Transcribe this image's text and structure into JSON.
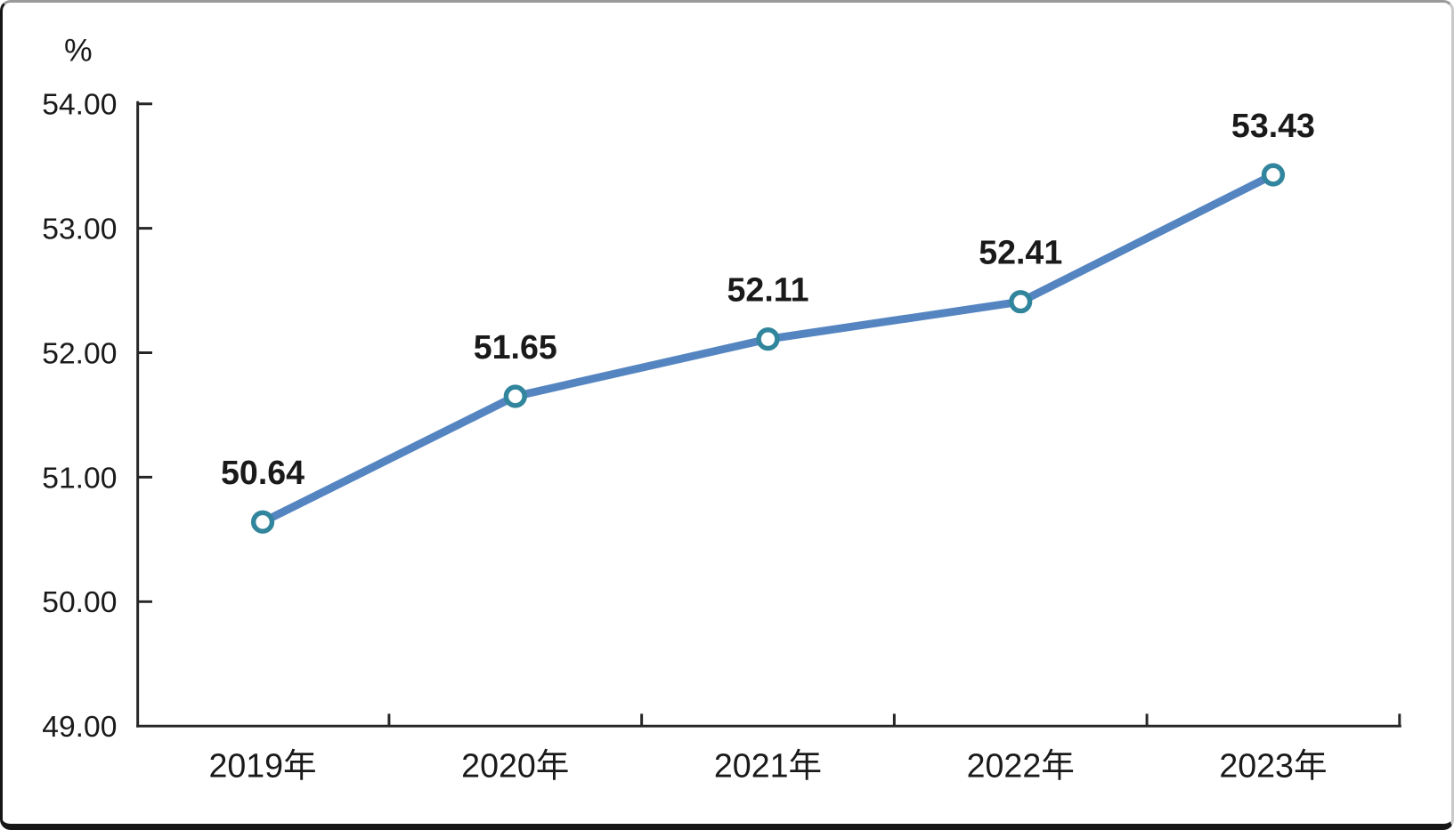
{
  "chart_data": {
    "type": "line",
    "title": "",
    "unit_label": "%",
    "categories": [
      "2019年",
      "2020年",
      "2021年",
      "2022年",
      "2023年"
    ],
    "series": [
      {
        "name": "",
        "values": [
          50.64,
          51.65,
          52.11,
          52.41,
          53.43
        ]
      }
    ],
    "data_labels": [
      "50.64",
      "51.65",
      "52.11",
      "52.41",
      "53.43"
    ],
    "xlabel": "",
    "ylabel": "%",
    "ylim": [
      49,
      54
    ],
    "y_tick_step": 1,
    "y_tick_labels": [
      "49.00",
      "50.00",
      "51.00",
      "52.00",
      "53.00",
      "54.00"
    ],
    "grid": false,
    "legend_position": "none",
    "marker_style": "open-circle",
    "colors": {
      "line": "#5585c1",
      "marker_stroke": "#31859c",
      "marker_fill": "#ffffff",
      "axis": "#262626",
      "label_text": "#1a1a1a"
    }
  }
}
